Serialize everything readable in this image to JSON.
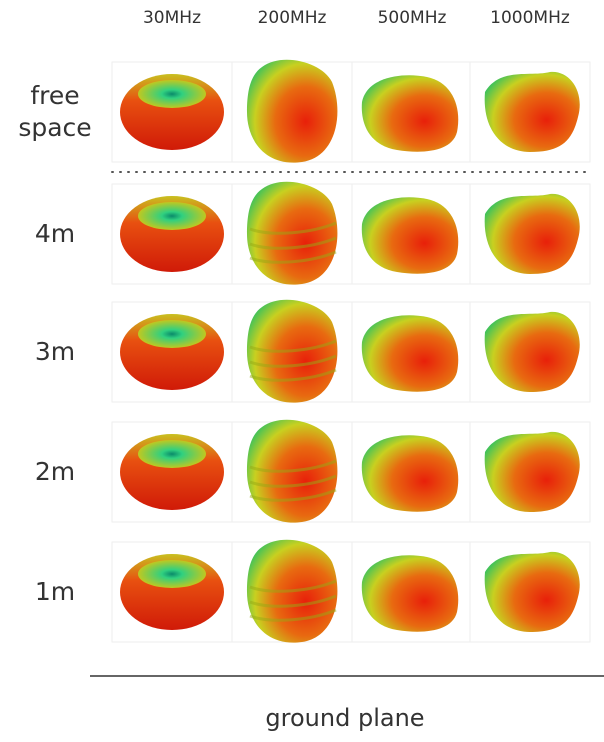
{
  "columns": [
    "30MHz",
    "200MHz",
    "500MHz",
    "1000MHz"
  ],
  "rows": [
    {
      "label": "free space"
    },
    {
      "label": "4m"
    },
    {
      "label": "3m"
    },
    {
      "label": "2m"
    },
    {
      "label": "1m"
    }
  ],
  "footer": "ground plane"
}
